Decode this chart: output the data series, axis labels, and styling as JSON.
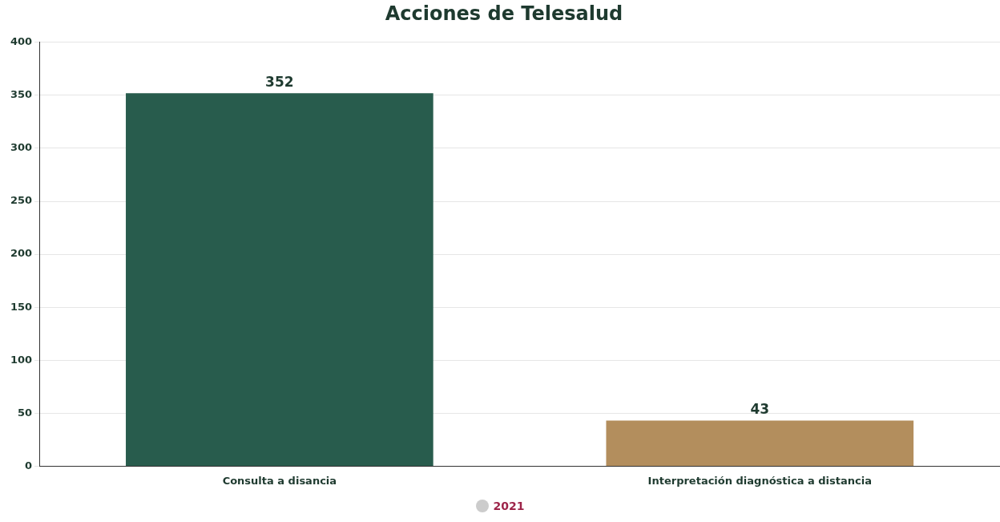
{
  "chart_data": {
    "type": "bar",
    "title": "Acciones de Telesalud",
    "categories": [
      "Consulta a disancia",
      "Interpretación diagnóstica a distancia"
    ],
    "series": [
      {
        "name": "2021",
        "colors": [
          "#285c4d",
          "#b38e5d"
        ],
        "values": [
          352,
          43
        ]
      }
    ],
    "ylim": [
      0,
      400
    ],
    "yticks": [
      0,
      50,
      100,
      150,
      200,
      250,
      300,
      350,
      400
    ],
    "grid": "y",
    "legend": "bottom",
    "data_labels": true
  }
}
